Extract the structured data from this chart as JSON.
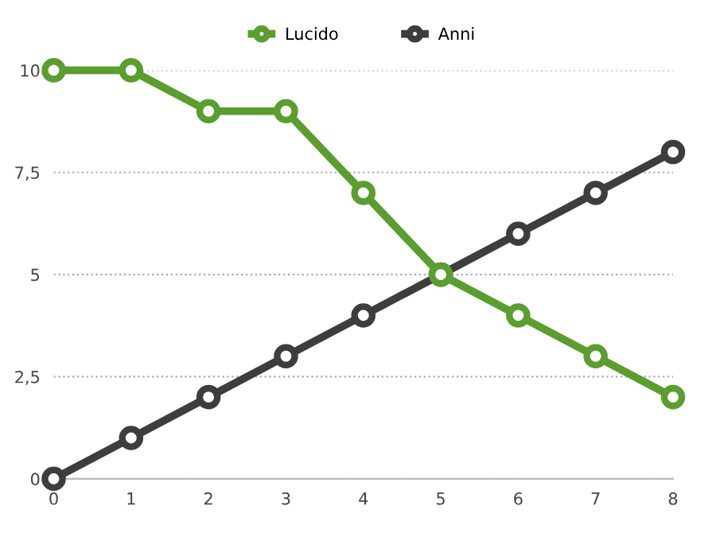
{
  "chart_data": {
    "type": "line",
    "x": [
      0,
      1,
      2,
      3,
      4,
      5,
      6,
      7,
      8
    ],
    "series": [
      {
        "name": "Lucido",
        "color": "#5a9e2f",
        "values": [
          10,
          10,
          9,
          9,
          7,
          5,
          4,
          3,
          2
        ]
      },
      {
        "name": "Anni",
        "color": "#3d3d3d",
        "values": [
          0,
          1,
          2,
          3,
          4,
          5,
          6,
          7,
          8
        ]
      }
    ],
    "xlim": [
      0,
      8
    ],
    "xticks": [
      0,
      1,
      2,
      3,
      4,
      5,
      6,
      7,
      8
    ],
    "ylim": [
      0,
      10
    ],
    "yticks": [
      0,
      {
        "value": 2.5,
        "label": "2,5"
      },
      5,
      {
        "value": 7.5,
        "label": "7,5"
      },
      10
    ],
    "grid": "y",
    "legend": "top",
    "marker": "circle",
    "line_style": "solid"
  }
}
